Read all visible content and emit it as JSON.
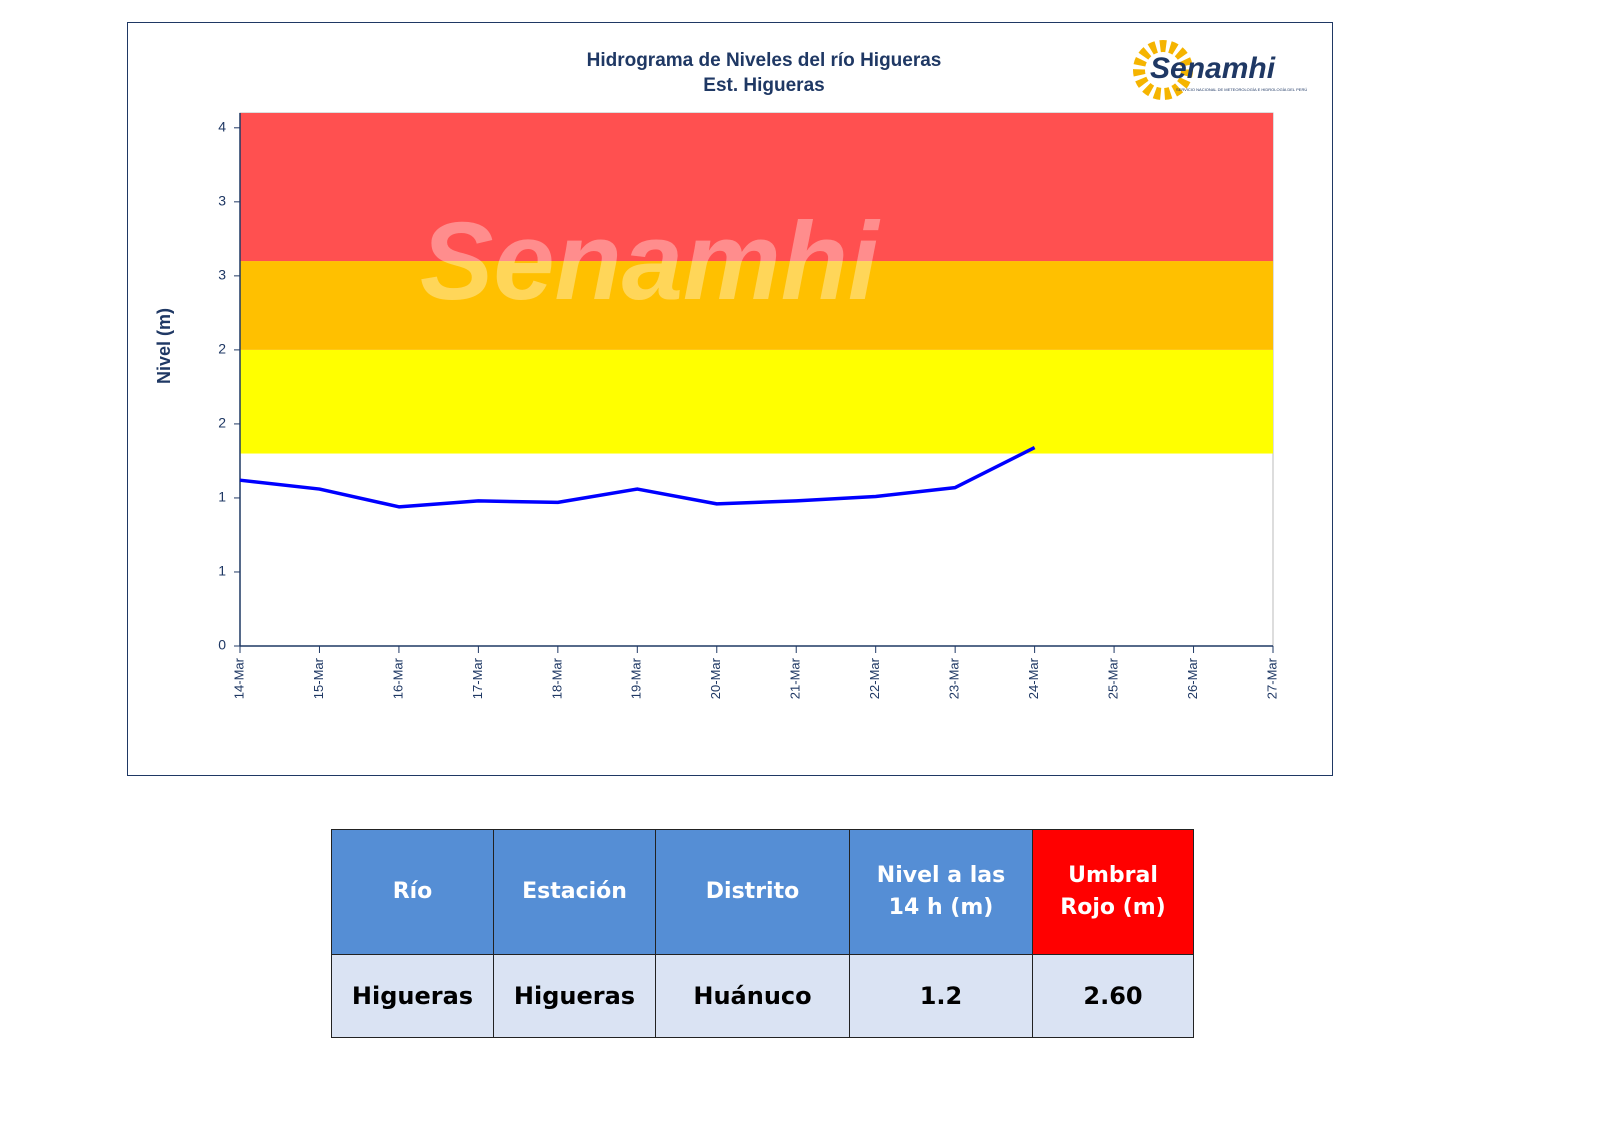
{
  "chart_data": {
    "type": "line",
    "title": "Hidrograma  de Niveles  del río Higueras",
    "subtitle": "Est. Higueras",
    "y_label": "Nivel (m)",
    "logo": "Senamhi",
    "logo_subtext": "SERVICIO NACIONAL DE METEOROLOGÍA E HIDROLOGÍA DEL PERÚ",
    "watermark": "Senamhi",
    "categories": [
      "14-Mar",
      "15-Mar",
      "16-Mar",
      "17-Mar",
      "18-Mar",
      "19-Mar",
      "20-Mar",
      "21-Mar",
      "22-Mar",
      "23-Mar",
      "24-Mar",
      "25-Mar",
      "26-Mar",
      "27-Mar"
    ],
    "series": [
      {
        "color": "#0000ff",
        "values": [
          1.12,
          1.06,
          0.94,
          0.98,
          0.97,
          1.06,
          0.96,
          0.98,
          1.01,
          1.07,
          1.34,
          null,
          null,
          null
        ]
      }
    ],
    "bands": [
      {
        "from": 1.3,
        "to": 2.0,
        "color": "#ffff00"
      },
      {
        "from": 2.0,
        "to": 2.6,
        "color": "#ffc000"
      },
      {
        "from": 2.6,
        "to": 3.6,
        "color": "#ff5050"
      }
    ],
    "ylim": [
      0,
      3.6
    ],
    "yticks": [
      0,
      {
        "value": 0.5,
        "label": "1"
      },
      1,
      {
        "value": 1.5,
        "label": "2"
      },
      2,
      {
        "value": 2.5,
        "label": "3"
      },
      3,
      {
        "value": 3.5,
        "label": "4"
      }
    ]
  },
  "table": {
    "header": [
      "Río",
      "Estación",
      "Distrito",
      "Nivel a las 14 h (m)",
      "Umbral Rojo (m)"
    ],
    "rows": [
      [
        "Higueras",
        "Higueras",
        "Huánuco",
        "1.2",
        "2.60"
      ]
    ]
  }
}
